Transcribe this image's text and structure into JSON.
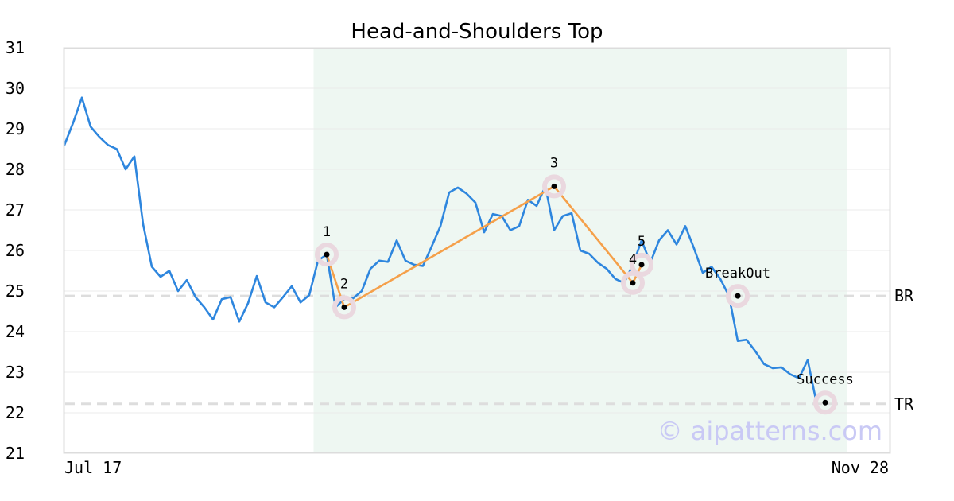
{
  "chart_data": {
    "type": "line",
    "title": "Head-and-Shoulders Top",
    "xlabel": "",
    "ylabel": "",
    "ylim": [
      21,
      31
    ],
    "y_ticks": [
      21,
      22,
      23,
      24,
      25,
      26,
      27,
      28,
      29,
      30,
      31
    ],
    "x_tick_labels": [
      "Jul 17",
      "Nov 28"
    ],
    "grid": true,
    "colors": {
      "price": "#2e86de",
      "pattern": "#f5a04a",
      "highlight": "#eef7f2",
      "marker_halo": "#ead8df",
      "reference_line": "#dddddd",
      "watermark": "#c9c9f5"
    },
    "series": [
      {
        "values": [
          28.6,
          29.15,
          29.77,
          29.05,
          28.8,
          28.6,
          28.5,
          28.0,
          28.32,
          26.65,
          25.6,
          25.35,
          25.5,
          25.0,
          25.27,
          24.85,
          24.6,
          24.3,
          24.8,
          24.85,
          24.25,
          24.7,
          25.37,
          24.72,
          24.6,
          24.85,
          25.12,
          24.72,
          24.9,
          25.75,
          25.9,
          24.6,
          24.8,
          24.82,
          25.0,
          25.55,
          25.75,
          25.72,
          26.25,
          25.75,
          25.65,
          25.62,
          26.1,
          26.6,
          27.43,
          27.55,
          27.4,
          27.18,
          26.45,
          26.9,
          26.85,
          26.5,
          26.6,
          27.25,
          27.1,
          27.58,
          26.5,
          26.85,
          26.92,
          26.0,
          25.92,
          25.7,
          25.55,
          25.3,
          25.2,
          25.65,
          26.25,
          25.7,
          26.25,
          26.5,
          26.15,
          26.6,
          26.05,
          25.45,
          25.6,
          25.3,
          24.88,
          23.77,
          23.8,
          23.52,
          23.2,
          23.1,
          23.12,
          22.95,
          22.85,
          23.3,
          22.25
        ]
      }
    ],
    "pattern_points": [
      {
        "label": "1",
        "index": 30,
        "value": 25.9
      },
      {
        "label": "2",
        "index": 32,
        "value": 24.6
      },
      {
        "label": "3",
        "index": 56,
        "value": 27.58
      },
      {
        "label": "4",
        "index": 65,
        "value": 25.2
      },
      {
        "label": "5",
        "index": 66,
        "value": 25.65
      },
      {
        "label": "BreakOut",
        "index": 77,
        "value": 24.88
      },
      {
        "label": "Success",
        "index": 87,
        "value": 22.25
      }
    ],
    "pattern_path_labels": [
      "1",
      "2",
      "3",
      "4",
      "5"
    ],
    "reference_lines": [
      {
        "label": "BR",
        "value": 24.88
      },
      {
        "label": "TR",
        "value": 22.22
      }
    ],
    "highlight_index_range": [
      28.5,
      89.5
    ],
    "watermark": "© aipatterns.com"
  }
}
